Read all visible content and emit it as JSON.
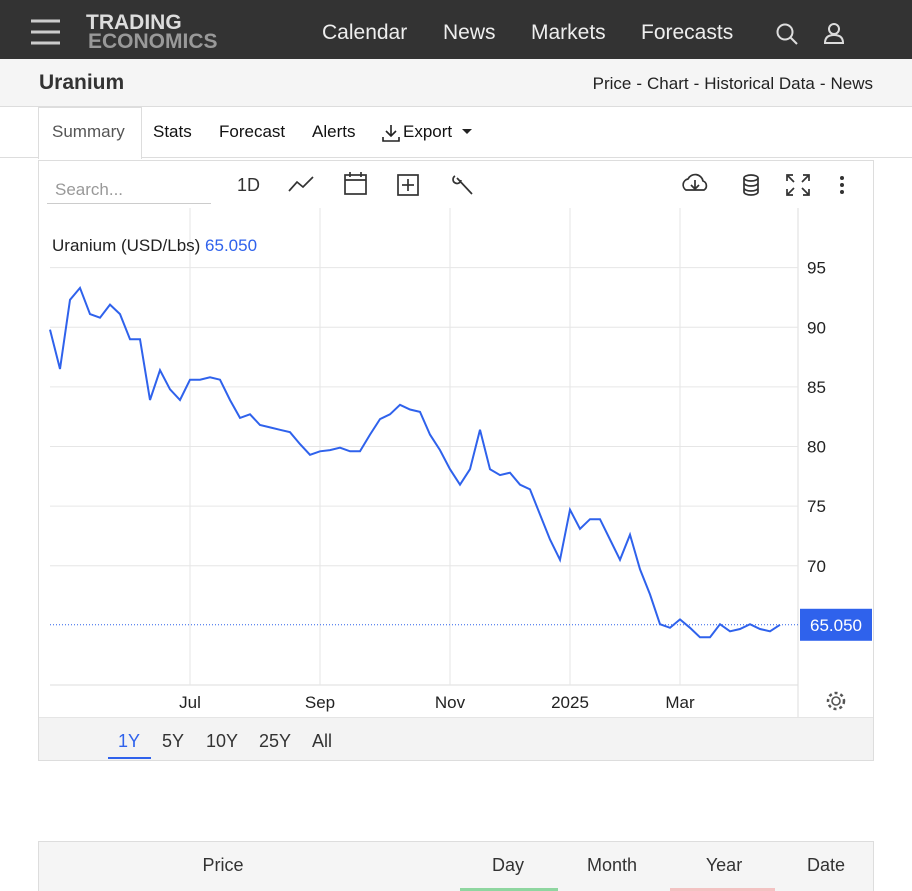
{
  "nav": {
    "logo": [
      "TRADING",
      "ECONOMICS"
    ],
    "links": [
      "Calendar",
      "News",
      "Markets",
      "Forecasts"
    ]
  },
  "header": {
    "title": "Uranium",
    "links": [
      "Price",
      "Chart",
      "Historical Data",
      "News"
    ],
    "separator": "-"
  },
  "tabs": [
    "Summary",
    "Stats",
    "Forecast",
    "Alerts",
    "Export"
  ],
  "toolbar": {
    "search_placeholder": "Search...",
    "interval": "1D"
  },
  "chart_data": {
    "type": "line",
    "categories": [
      null,
      null,
      null,
      null,
      null,
      null,
      null,
      null,
      null,
      null,
      null,
      null,
      null,
      null,
      "Jul",
      null,
      null,
      null,
      null,
      null,
      null,
      null,
      null,
      null,
      null,
      null,
      null,
      "Sep",
      null,
      null,
      null,
      null,
      null,
      null,
      null,
      null,
      null,
      null,
      null,
      null,
      "Nov",
      null,
      null,
      null,
      null,
      null,
      null,
      null,
      null,
      null,
      null,
      null,
      "2025",
      null,
      null,
      null,
      null,
      null,
      null,
      null,
      null,
      null,
      null,
      "Mar",
      null,
      null,
      null,
      null,
      null,
      null,
      null,
      null,
      null,
      null
    ],
    "series": [
      {
        "name": "Uranium (USD/Lbs)",
        "color": "#2f62ec",
        "values": [
          89.8,
          86.5,
          92.3,
          93.3,
          91.1,
          90.8,
          91.9,
          91.1,
          89.0,
          89.0,
          83.9,
          86.4,
          84.8,
          83.9,
          85.6,
          85.6,
          85.8,
          85.6,
          83.9,
          82.4,
          82.7,
          81.8,
          81.6,
          81.4,
          81.2,
          80.2,
          79.3,
          79.6,
          79.7,
          79.9,
          79.6,
          79.6,
          81.0,
          82.3,
          82.7,
          83.5,
          83.1,
          82.9,
          81.0,
          79.7,
          78.1,
          76.8,
          78.1,
          81.4,
          78.1,
          77.6,
          77.8,
          76.8,
          76.4,
          74.3,
          72.2,
          70.5,
          74.7,
          73.1,
          73.9,
          73.9,
          72.2,
          70.5,
          72.6,
          69.7,
          67.6,
          65.1,
          64.8,
          65.5,
          64.8,
          64.0,
          64.0,
          65.1,
          64.5,
          64.7,
          65.1,
          64.7,
          64.5,
          65.05
        ]
      }
    ],
    "last_value": {
      "value": 65.05,
      "label": "65.050"
    },
    "ylim": [
      60,
      100
    ],
    "yticks": [
      70,
      75,
      80,
      85,
      90,
      95
    ],
    "grid": true
  },
  "ranges": [
    "1Y",
    "5Y",
    "10Y",
    "25Y",
    "All"
  ],
  "table": {
    "columns": [
      "Price",
      "Day",
      "Month",
      "Year",
      "Date"
    ]
  }
}
